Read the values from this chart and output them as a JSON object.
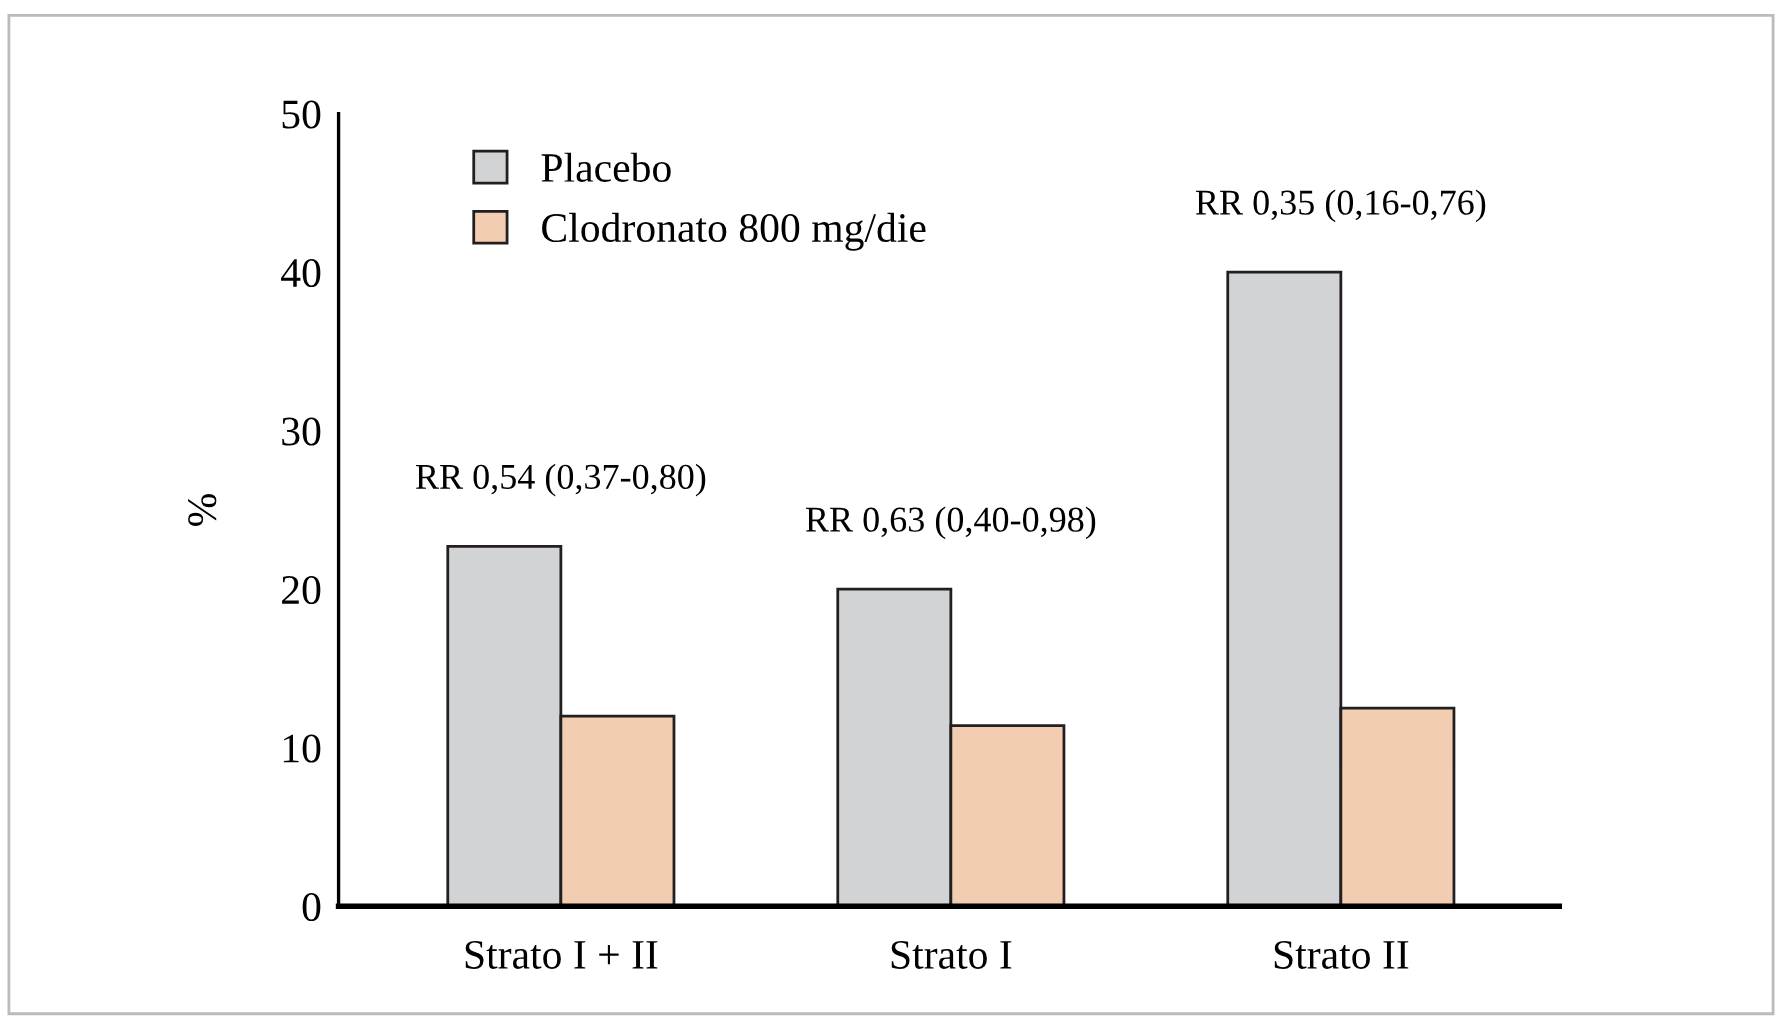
{
  "chart_data": {
    "type": "bar",
    "ylabel": "%",
    "categories": [
      "Strato I + II",
      "Strato I",
      "Strato II"
    ],
    "series": [
      {
        "name": "Placebo",
        "color": "#d1d3d4",
        "values": [
          22.7,
          20,
          40
        ]
      },
      {
        "name": "Clodronato 800 mg/die",
        "color": "#f2cdb1",
        "values": [
          12,
          11.4,
          12.5
        ]
      }
    ],
    "annotations": [
      "RR 0,54 (0,37-0,80)",
      "RR 0,63 (0,40-0,98)",
      "RR 0,35 (0,16-0,76)"
    ],
    "ylim": [
      0,
      50
    ],
    "yticks": [
      0,
      10,
      20,
      30,
      40,
      50
    ],
    "legend": "top left",
    "grid": false
  }
}
